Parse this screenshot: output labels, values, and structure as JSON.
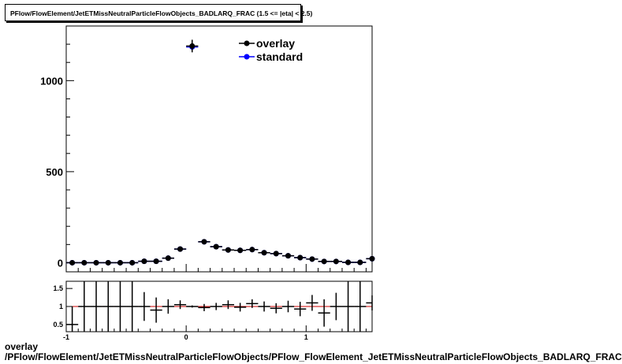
{
  "header": {
    "title": "PFlow/FlowElement/JetETMissNeutralParticleFlowObjects_BADLARQ_FRAC (1.5 <= |eta| < 2.5)"
  },
  "footer": {
    "line1": "overlay",
    "line2": "/PFlow/FlowElement/JetETMissNeutralParticleFlowObjects/PFlow_FlowElement_JetETMissNeutralParticleFlowObjects_BADLARQ_FRAC"
  },
  "colors": {
    "overlay": "#000000",
    "standard": "#0000ff",
    "ratio_line": "#cc0000"
  },
  "chart_data": [
    {
      "type": "scatter",
      "panel": "main",
      "xlim": [
        -1,
        1.55
      ],
      "ylim": [
        -50,
        1300
      ],
      "yticks": [
        0,
        500,
        1000
      ],
      "grid": false,
      "legend": "top-right",
      "legend_entries": [
        "overlay",
        "standard"
      ],
      "x": [
        -0.95,
        -0.85,
        -0.75,
        -0.65,
        -0.55,
        -0.45,
        -0.35,
        -0.25,
        -0.15,
        -0.05,
        0.05,
        0.15,
        0.25,
        0.35,
        0.45,
        0.55,
        0.65,
        0.75,
        0.85,
        0.95,
        1.05,
        1.15,
        1.25,
        1.35,
        1.45,
        1.55
      ],
      "series": [
        {
          "name": "overlay",
          "values": [
            0,
            0,
            0,
            0,
            0,
            0,
            8,
            8,
            25,
            75,
            1190,
            115,
            88,
            70,
            68,
            72,
            55,
            50,
            38,
            28,
            20,
            7,
            7,
            2,
            2,
            22
          ]
        },
        {
          "name": "standard",
          "values": [
            0,
            0,
            0,
            0,
            0,
            0,
            8,
            8,
            25,
            75,
            1185,
            115,
            88,
            70,
            68,
            72,
            55,
            50,
            38,
            28,
            20,
            7,
            7,
            2,
            2,
            22
          ]
        }
      ]
    },
    {
      "type": "scatter",
      "panel": "ratio",
      "xlim": [
        -1,
        1.55
      ],
      "ylim": [
        0.3,
        1.7
      ],
      "yticks": [
        0.5,
        1,
        1.5
      ],
      "xticks": [
        -1,
        0,
        1
      ],
      "reference_line": 1,
      "x": [
        -0.95,
        -0.85,
        -0.75,
        -0.65,
        -0.55,
        -0.45,
        -0.35,
        -0.25,
        -0.15,
        -0.05,
        0.05,
        0.15,
        0.25,
        0.35,
        0.45,
        0.55,
        0.65,
        0.75,
        0.85,
        0.95,
        1.05,
        1.15,
        1.25,
        1.35,
        1.45,
        1.55
      ],
      "values": [
        0.5,
        1.0,
        1.0,
        1.0,
        1.0,
        1.0,
        1.0,
        0.9,
        1.0,
        1.05,
        1.0,
        0.97,
        1.0,
        1.05,
        0.98,
        1.08,
        1.0,
        0.95,
        1.0,
        0.93,
        1.1,
        0.82,
        1.0,
        1.0,
        1.0,
        1.1
      ],
      "errors": [
        0.5,
        0.7,
        0.7,
        0.7,
        0.7,
        0.7,
        0.4,
        0.35,
        0.2,
        0.12,
        0.03,
        0.1,
        0.1,
        0.12,
        0.12,
        0.12,
        0.14,
        0.14,
        0.16,
        0.2,
        0.22,
        0.38,
        0.38,
        0.7,
        0.7,
        0.21
      ]
    }
  ]
}
